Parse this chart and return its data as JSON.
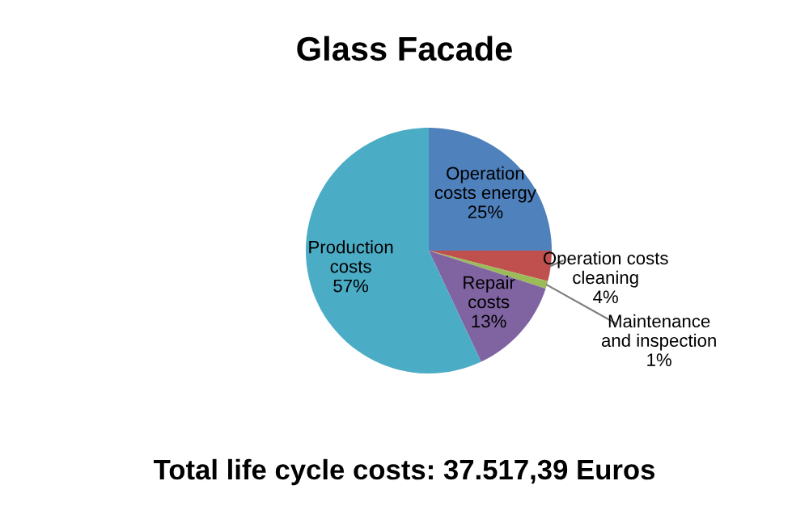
{
  "chart_data": {
    "type": "pie",
    "title": "Glass Facade",
    "categories": [
      "Operation\ncosts energy",
      "Operation costs\ncleaning",
      "Maintenance\nand inspection",
      "Repair\ncosts",
      "Production\ncosts"
    ],
    "values": [
      25,
      4,
      1,
      13,
      57
    ],
    "colors": [
      "#4f81bd",
      "#c0504d",
      "#9bbb59",
      "#8064a2",
      "#4bacc6"
    ],
    "value_labels": [
      "25%",
      "4%",
      "1%",
      "13%",
      "57%"
    ],
    "legend": false,
    "annotations": [
      "Total life cycle costs: 37.517,39 Euros"
    ]
  }
}
